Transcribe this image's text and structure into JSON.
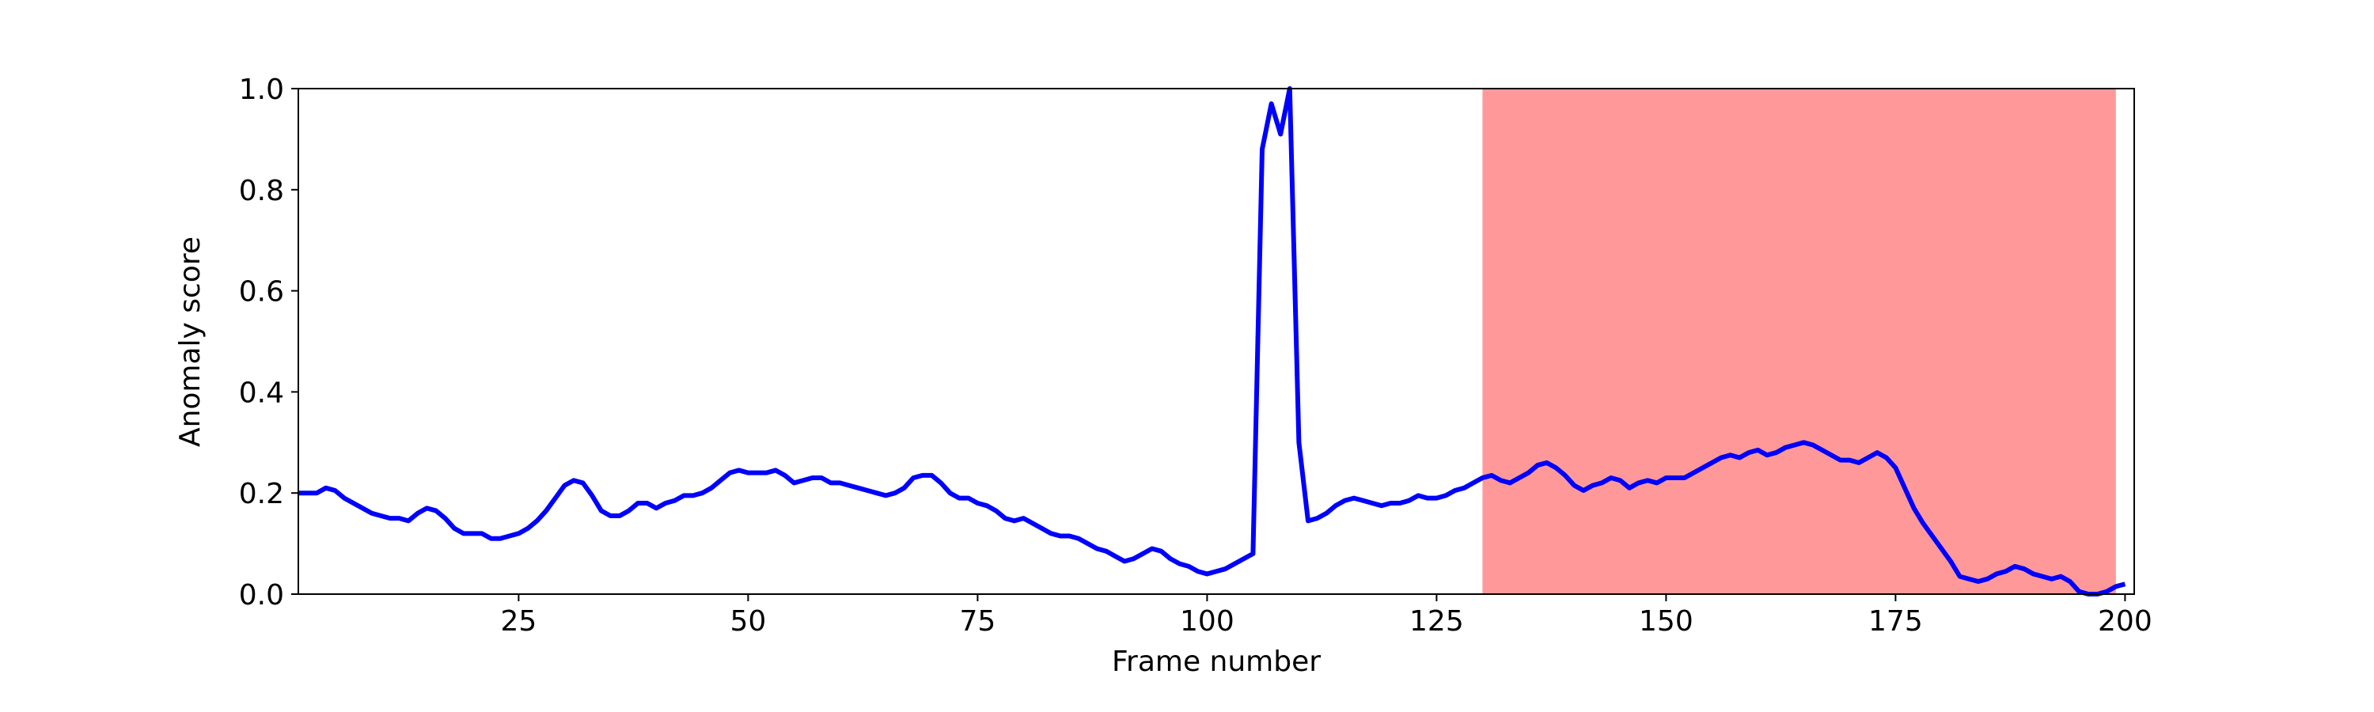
{
  "chart_data": {
    "type": "line",
    "xlabel": "Frame number",
    "ylabel": "Anomaly score",
    "x": [
      1,
      2,
      3,
      4,
      5,
      6,
      7,
      8,
      9,
      10,
      11,
      12,
      13,
      14,
      15,
      16,
      17,
      18,
      19,
      20,
      21,
      22,
      23,
      24,
      25,
      26,
      27,
      28,
      29,
      30,
      31,
      32,
      33,
      34,
      35,
      36,
      37,
      38,
      39,
      40,
      41,
      42,
      43,
      44,
      45,
      46,
      47,
      48,
      49,
      50,
      51,
      52,
      53,
      54,
      55,
      56,
      57,
      58,
      59,
      60,
      61,
      62,
      63,
      64,
      65,
      66,
      67,
      68,
      69,
      70,
      71,
      72,
      73,
      74,
      75,
      76,
      77,
      78,
      79,
      80,
      81,
      82,
      83,
      84,
      85,
      86,
      87,
      88,
      89,
      90,
      91,
      92,
      93,
      94,
      95,
      96,
      97,
      98,
      99,
      100,
      101,
      102,
      103,
      104,
      105,
      106,
      107,
      108,
      109,
      110,
      111,
      112,
      113,
      114,
      115,
      116,
      117,
      118,
      119,
      120,
      121,
      122,
      123,
      124,
      125,
      126,
      127,
      128,
      129,
      130,
      131,
      132,
      133,
      134,
      135,
      136,
      137,
      138,
      139,
      140,
      141,
      142,
      143,
      144,
      145,
      146,
      147,
      148,
      149,
      150,
      151,
      152,
      153,
      154,
      155,
      156,
      157,
      158,
      159,
      160,
      161,
      162,
      163,
      164,
      165,
      166,
      167,
      168,
      169,
      170,
      171,
      172,
      173,
      174,
      175,
      176,
      177,
      178,
      179,
      180,
      181,
      182,
      183,
      184,
      185,
      186,
      187,
      188,
      189,
      190,
      191,
      192,
      193,
      194,
      195,
      196,
      197,
      198,
      199,
      200
    ],
    "series": [
      {
        "color": "#0000ff",
        "values": [
          0.2,
          0.2,
          0.2,
          0.21,
          0.205,
          0.19,
          0.18,
          0.17,
          0.16,
          0.155,
          0.15,
          0.15,
          0.145,
          0.16,
          0.17,
          0.165,
          0.15,
          0.13,
          0.12,
          0.12,
          0.12,
          0.11,
          0.11,
          0.115,
          0.12,
          0.13,
          0.145,
          0.165,
          0.19,
          0.215,
          0.225,
          0.22,
          0.195,
          0.165,
          0.155,
          0.155,
          0.165,
          0.18,
          0.18,
          0.17,
          0.18,
          0.185,
          0.195,
          0.195,
          0.2,
          0.21,
          0.225,
          0.24,
          0.245,
          0.24,
          0.24,
          0.24,
          0.245,
          0.235,
          0.22,
          0.225,
          0.23,
          0.23,
          0.22,
          0.22,
          0.215,
          0.21,
          0.205,
          0.2,
          0.195,
          0.2,
          0.21,
          0.23,
          0.235,
          0.235,
          0.22,
          0.2,
          0.19,
          0.19,
          0.18,
          0.175,
          0.165,
          0.15,
          0.145,
          0.15,
          0.14,
          0.13,
          0.12,
          0.115,
          0.115,
          0.11,
          0.1,
          0.09,
          0.085,
          0.075,
          0.065,
          0.07,
          0.08,
          0.09,
          0.085,
          0.07,
          0.06,
          0.055,
          0.045,
          0.04,
          0.045,
          0.05,
          0.06,
          0.07,
          0.08,
          0.88,
          0.97,
          0.91,
          1.0,
          0.3,
          0.145,
          0.15,
          0.16,
          0.175,
          0.185,
          0.19,
          0.185,
          0.18,
          0.175,
          0.18,
          0.18,
          0.185,
          0.195,
          0.19,
          0.19,
          0.195,
          0.205,
          0.21,
          0.22,
          0.23,
          0.235,
          0.225,
          0.22,
          0.23,
          0.24,
          0.255,
          0.26,
          0.25,
          0.235,
          0.215,
          0.205,
          0.215,
          0.22,
          0.23,
          0.225,
          0.21,
          0.22,
          0.225,
          0.22,
          0.23,
          0.23,
          0.23,
          0.24,
          0.25,
          0.26,
          0.27,
          0.275,
          0.27,
          0.28,
          0.285,
          0.275,
          0.28,
          0.29,
          0.295,
          0.3,
          0.295,
          0.285,
          0.275,
          0.265,
          0.265,
          0.26,
          0.27,
          0.28,
          0.27,
          0.25,
          0.21,
          0.17,
          0.14,
          0.115,
          0.09,
          0.065,
          0.035,
          0.03,
          0.025,
          0.03,
          0.04,
          0.045,
          0.055,
          0.05,
          0.04,
          0.035,
          0.03,
          0.035,
          0.025,
          0.005,
          0.0,
          0.0,
          0.005,
          0.015,
          0.02
        ]
      }
    ],
    "spans": [
      {
        "start": 130,
        "end": 199,
        "color": "#ff9999"
      }
    ],
    "xlim": [
      1,
      201
    ],
    "ylim": [
      0,
      1
    ],
    "xticks": [
      25,
      50,
      75,
      100,
      125,
      150,
      175,
      200
    ],
    "yticks": [
      {
        "value": 0,
        "label": "0.0"
      },
      0.2,
      0.4,
      0.6,
      0.8,
      {
        "value": 1,
        "label": "1.0"
      }
    ]
  }
}
